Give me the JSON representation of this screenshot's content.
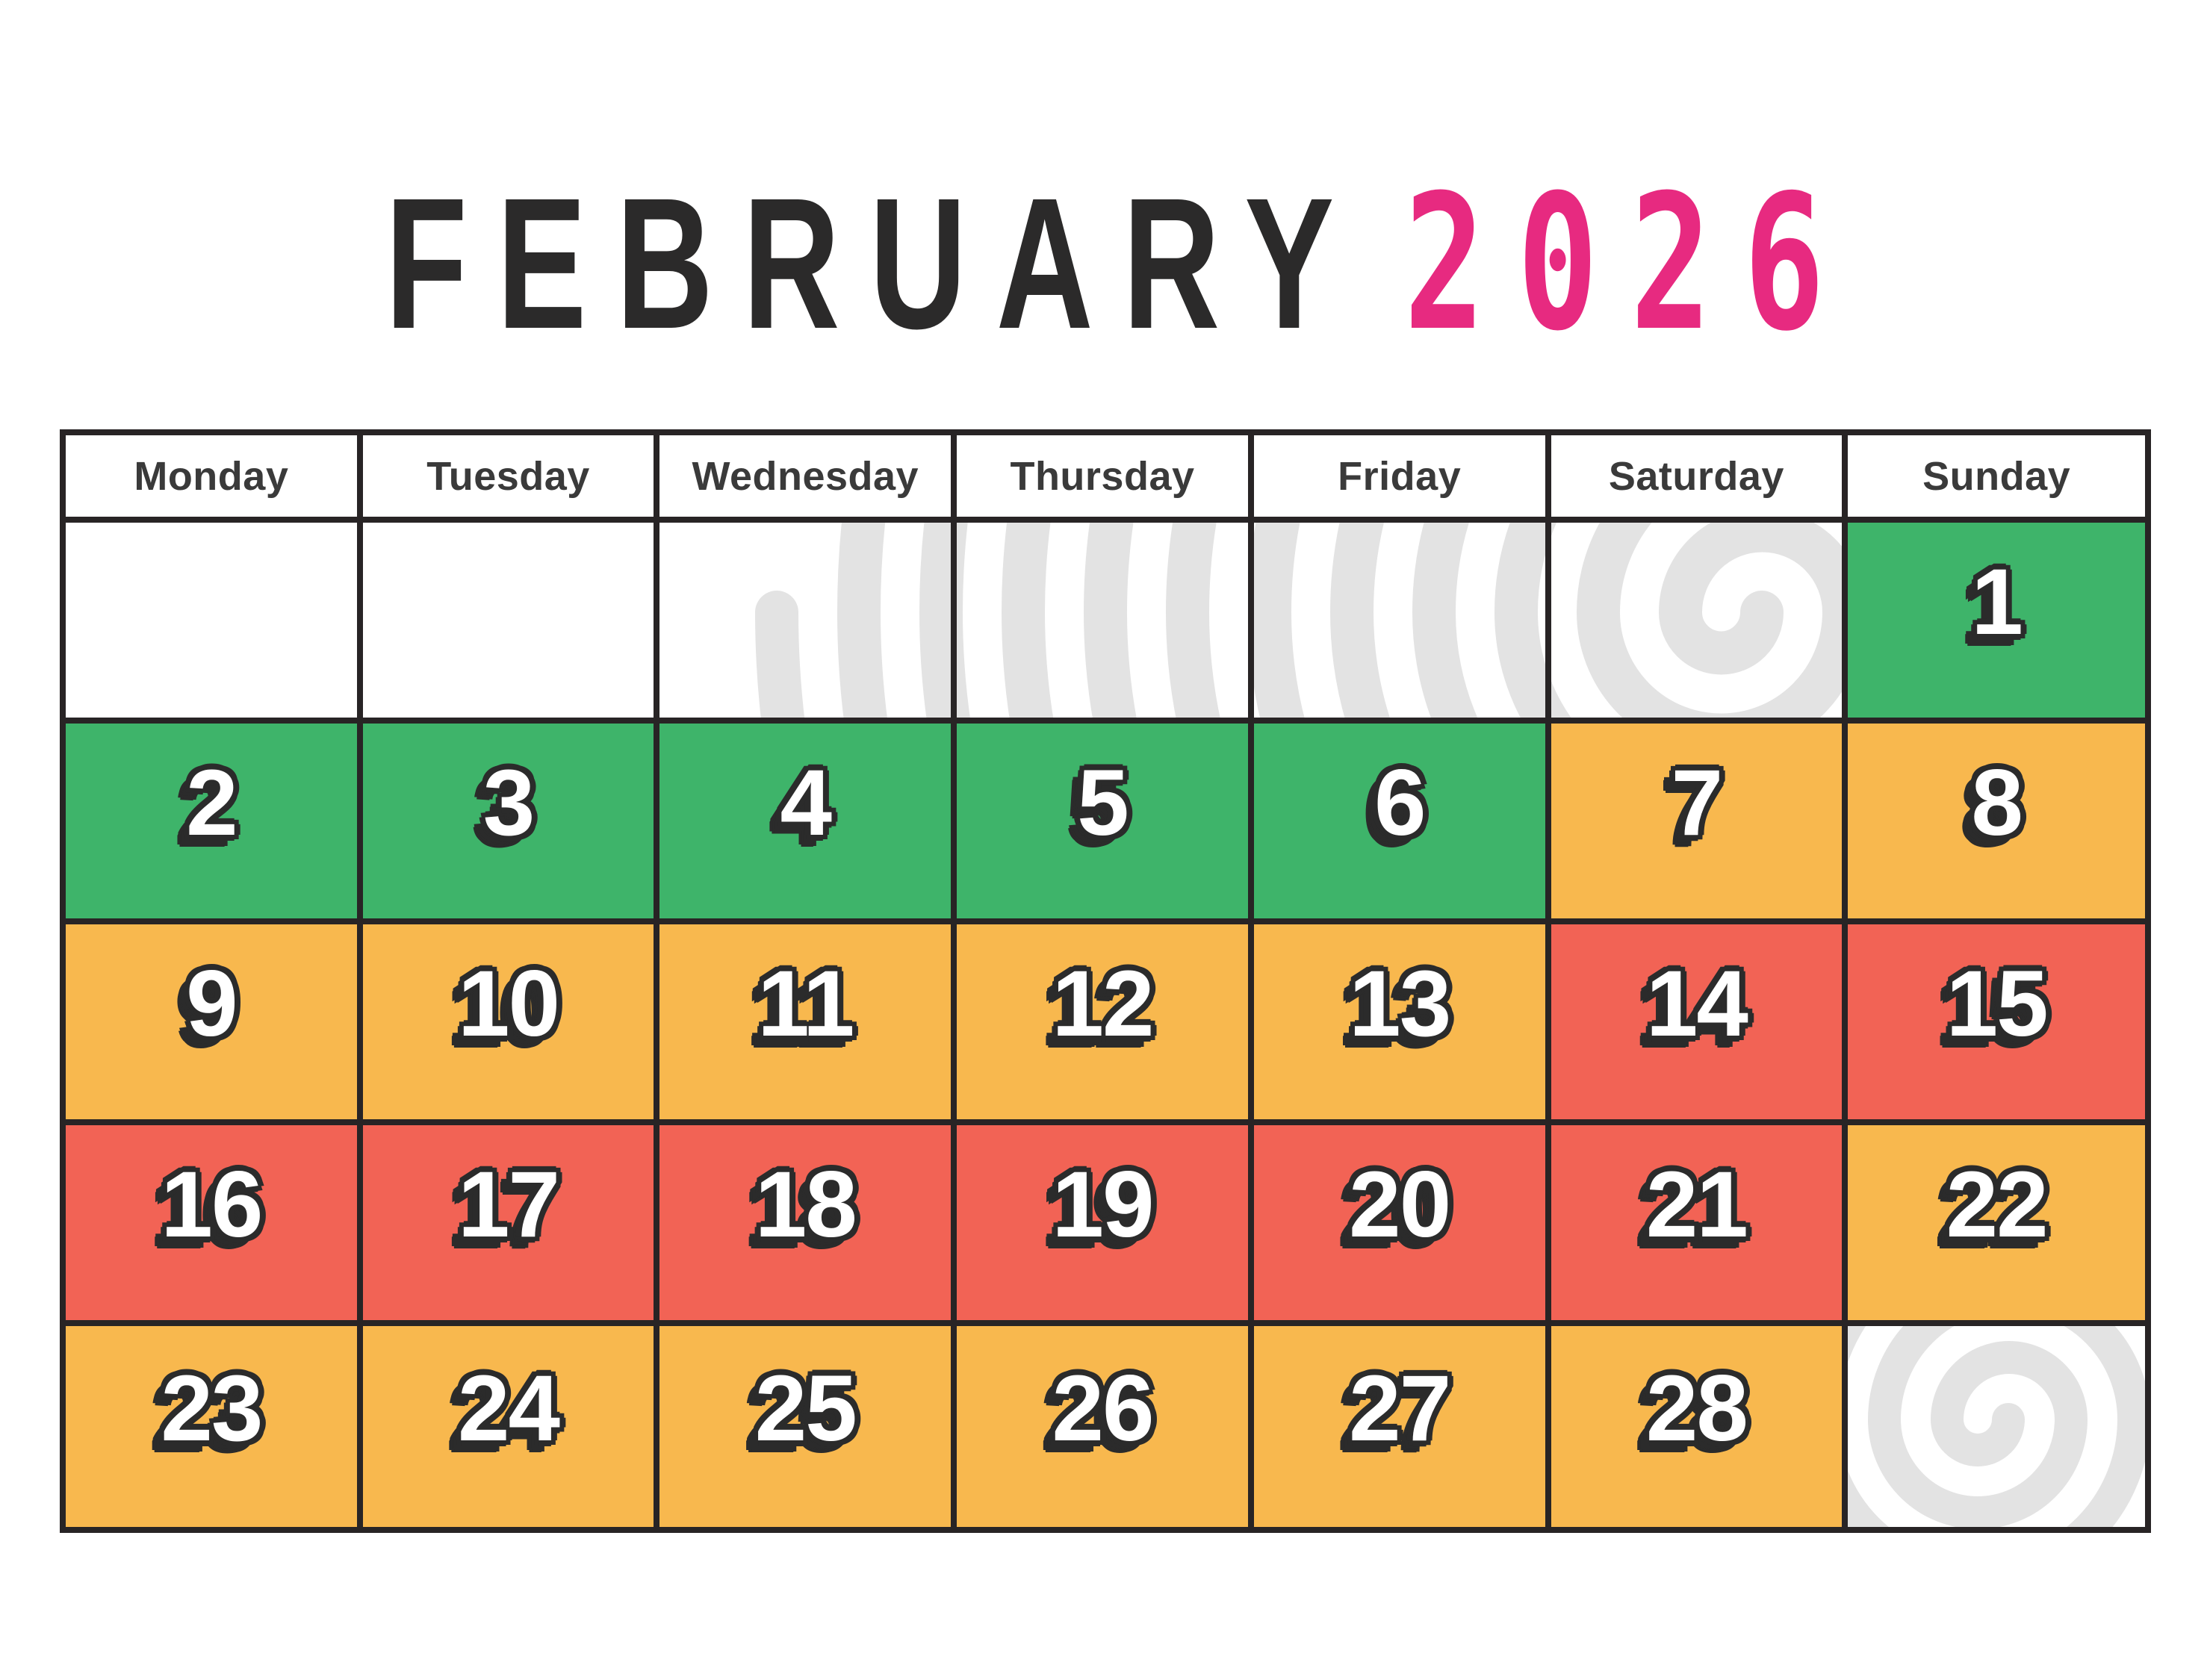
{
  "title": {
    "month": "FEBRUARY",
    "year": "2026"
  },
  "weekday_headers": [
    "Monday",
    "Tuesday",
    "Wednesday",
    "Thursday",
    "Friday",
    "Saturday",
    "Sunday"
  ],
  "colors": {
    "month_text": "#2b2a2a",
    "year_text": "#e72a80",
    "grid": "#282425",
    "header_text": "#3a3a3a",
    "green": "#3eb46a",
    "orange": "#f8b84e",
    "red": "#f26355",
    "number_fill": "#ffffff",
    "number_outline": "#2b2b2b",
    "watermark": "#e3e3e3"
  },
  "weeks": [
    [
      null,
      null,
      null,
      null,
      null,
      null,
      {
        "day": "1",
        "status": "green"
      }
    ],
    [
      {
        "day": "2",
        "status": "green"
      },
      {
        "day": "3",
        "status": "green"
      },
      {
        "day": "4",
        "status": "green"
      },
      {
        "day": "5",
        "status": "green"
      },
      {
        "day": "6",
        "status": "green"
      },
      {
        "day": "7",
        "status": "orange"
      },
      {
        "day": "8",
        "status": "orange"
      }
    ],
    [
      {
        "day": "9",
        "status": "orange"
      },
      {
        "day": "10",
        "status": "orange"
      },
      {
        "day": "11",
        "status": "orange"
      },
      {
        "day": "12",
        "status": "orange"
      },
      {
        "day": "13",
        "status": "orange"
      },
      {
        "day": "14",
        "status": "red"
      },
      {
        "day": "15",
        "status": "red"
      }
    ],
    [
      {
        "day": "16",
        "status": "red"
      },
      {
        "day": "17",
        "status": "red"
      },
      {
        "day": "18",
        "status": "red"
      },
      {
        "day": "19",
        "status": "red"
      },
      {
        "day": "20",
        "status": "red"
      },
      {
        "day": "21",
        "status": "red"
      },
      {
        "day": "22",
        "status": "orange"
      }
    ],
    [
      {
        "day": "23",
        "status": "orange"
      },
      {
        "day": "24",
        "status": "orange"
      },
      {
        "day": "25",
        "status": "orange"
      },
      {
        "day": "26",
        "status": "orange"
      },
      {
        "day": "27",
        "status": "orange"
      },
      {
        "day": "28",
        "status": "orange"
      },
      null
    ]
  ]
}
